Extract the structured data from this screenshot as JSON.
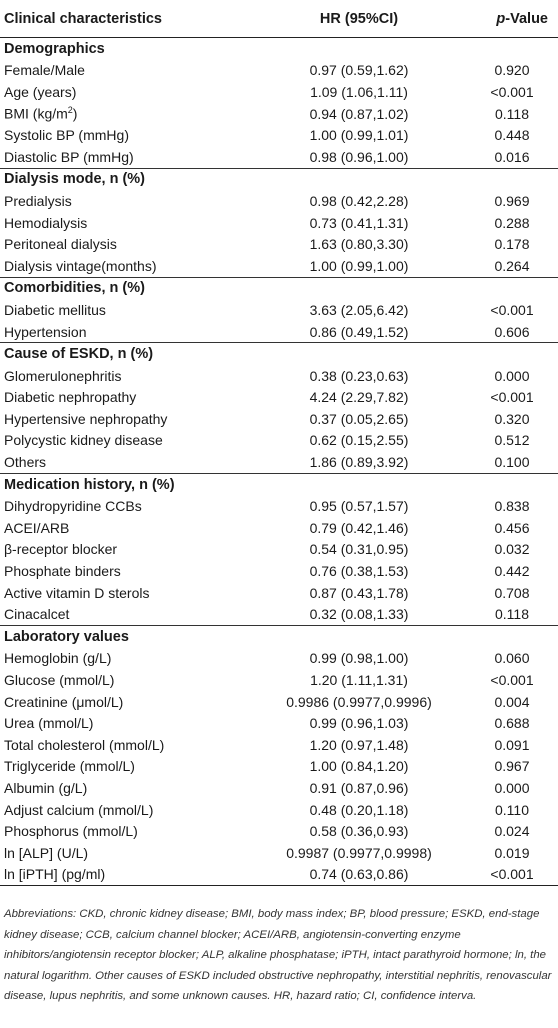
{
  "header": {
    "col_characteristics": "Clinical characteristics",
    "col_hr": "HR (95%CI)",
    "col_p_prefix": "p",
    "col_p_suffix": "-Value"
  },
  "sections": [
    {
      "title": "Demographics",
      "rows": [
        {
          "label": "Female/Male",
          "hr": "0.97 (0.59,1.62)",
          "p": "0.920"
        },
        {
          "label": "Age (years)",
          "hr": "1.09 (1.06,1.11)",
          "p": "<0.001"
        },
        {
          "label": "BMI (kg/m",
          "label_sup": "2",
          "label_after": ")",
          "hr": "0.94 (0.87,1.02)",
          "p": "0.118"
        },
        {
          "label": "Systolic BP (mmHg)",
          "hr": "1.00 (0.99,1.01)",
          "p": "0.448"
        },
        {
          "label": "Diastolic BP (mmHg)",
          "hr": "0.98 (0.96,1.00)",
          "p": "0.016"
        }
      ]
    },
    {
      "title": "Dialysis mode, n (%)",
      "rows": [
        {
          "label": "Predialysis",
          "hr": "0.98 (0.42,2.28)",
          "p": "0.969"
        },
        {
          "label": "Hemodialysis",
          "hr": "0.73 (0.41,1.31)",
          "p": "0.288"
        },
        {
          "label": "Peritoneal dialysis",
          "hr": "1.63 (0.80,3.30)",
          "p": "0.178"
        },
        {
          "label": "Dialysis vintage(months)",
          "hr": "1.00 (0.99,1.00)",
          "p": "0.264"
        }
      ]
    },
    {
      "title": "Comorbidities, n (%)",
      "rows": [
        {
          "label": "Diabetic mellitus",
          "hr": "3.63 (2.05,6.42)",
          "p": "<0.001"
        },
        {
          "label": "Hypertension",
          "hr": "0.86 (0.49,1.52)",
          "p": "0.606"
        }
      ]
    },
    {
      "title": "Cause of ESKD, n (%)",
      "rows": [
        {
          "label": "Glomerulonephritis",
          "hr": "0.38 (0.23,0.63)",
          "p": "0.000"
        },
        {
          "label": "Diabetic nephropathy",
          "hr": "4.24 (2.29,7.82)",
          "p": "<0.001"
        },
        {
          "label": "Hypertensive nephropathy",
          "hr": "0.37 (0.05,2.65)",
          "p": "0.320"
        },
        {
          "label": "Polycystic kidney disease",
          "hr": "0.62 (0.15,2.55)",
          "p": "0.512"
        },
        {
          "label": "Others",
          "hr": "1.86 (0.89,3.92)",
          "p": "0.100"
        }
      ]
    },
    {
      "title": "Medication history, n (%)",
      "rows": [
        {
          "label": "Dihydropyridine CCBs",
          "hr": "0.95 (0.57,1.57)",
          "p": "0.838"
        },
        {
          "label": "ACEI/ARB",
          "hr": "0.79 (0.42,1.46)",
          "p": "0.456"
        },
        {
          "label": "β-receptor blocker",
          "hr": "0.54 (0.31,0.95)",
          "p": "0.032"
        },
        {
          "label": "Phosphate binders",
          "hr": "0.76 (0.38,1.53)",
          "p": "0.442"
        },
        {
          "label": "Active vitamin D sterols",
          "hr": "0.87 (0.43,1.78)",
          "p": "0.708"
        },
        {
          "label": "Cinacalcet",
          "hr": "0.32 (0.08,1.33)",
          "p": "0.118"
        }
      ]
    },
    {
      "title": "Laboratory values",
      "rows": [
        {
          "label": "Hemoglobin (g/L)",
          "hr": "0.99 (0.98,1.00)",
          "p": "0.060"
        },
        {
          "label": "Glucose (mmol/L)",
          "hr": "1.20 (1.11,1.31)",
          "p": "<0.001"
        },
        {
          "label": "Creatinine (μmol/L)",
          "hr": "0.9986 (0.9977,0.9996)",
          "p": "0.004"
        },
        {
          "label": "Urea (mmol/L)",
          "hr": "0.99 (0.96,1.03)",
          "p": "0.688"
        },
        {
          "label": "Total cholesterol (mmol/L)",
          "hr": "1.20 (0.97,1.48)",
          "p": "0.091"
        },
        {
          "label": "Triglyceride (mmol/L)",
          "hr": "1.00 (0.84,1.20)",
          "p": "0.967"
        },
        {
          "label": "Albumin (g/L)",
          "hr": "0.91 (0.87,0.96)",
          "p": "0.000"
        },
        {
          "label": "Adjust calcium (mmol/L)",
          "hr": "0.48 (0.20,1.18)",
          "p": "0.110"
        },
        {
          "label": "Phosphorus (mmol/L)",
          "hr": "0.58 (0.36,0.93)",
          "p": "0.024"
        },
        {
          "label": "ln [ALP] (U/L)",
          "hr": "0.9987 (0.9977,0.9998)",
          "p": "0.019"
        },
        {
          "label": "ln [iPTH] (pg/ml)",
          "hr": "0.74 (0.63,0.86)",
          "p": "<0.001"
        }
      ]
    }
  ],
  "footnote": "Abbreviations: CKD, chronic kidney disease; BMI, body mass index; BP, blood pressure; ESKD, end-stage kidney disease; CCB, calcium channel blocker; ACEI/ARB, angiotensin-converting enzyme inhibitors/angiotensin receptor blocker; ALP, alkaline phosphatase; iPTH, intact parathyroid hormone; ln, the natural logarithm. Other causes of ESKD included obstructive nephropathy, interstitial nephritis, renovascular disease, lupus nephritis, and some unknown causes. HR, hazard ratio; CI, confidence interva."
}
